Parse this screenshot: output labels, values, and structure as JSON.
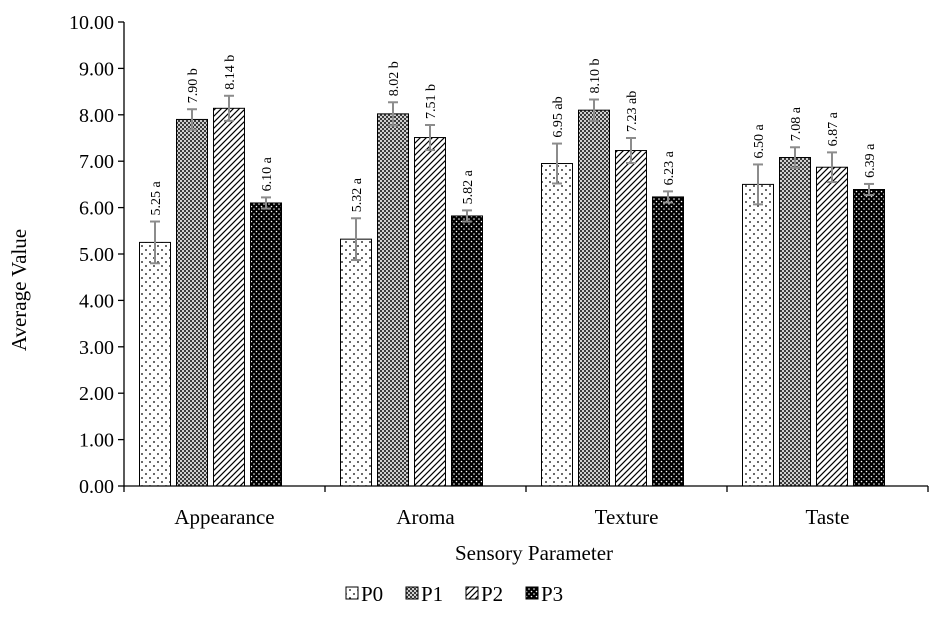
{
  "chart_data": {
    "type": "bar",
    "xlabel": "Sensory Parameter",
    "ylabel": "Average Value",
    "ylim": [
      0,
      10
    ],
    "y_ticks": [
      "0.00",
      "1.00",
      "2.00",
      "3.00",
      "4.00",
      "5.00",
      "6.00",
      "7.00",
      "8.00",
      "9.00",
      "10.00"
    ],
    "categories": [
      "Appearance",
      "Aroma",
      "Texture",
      "Taste"
    ],
    "legend_position": "bottom",
    "series": [
      {
        "name": "P0",
        "pattern": "sparse-dots",
        "values": [
          5.25,
          5.32,
          6.95,
          6.5
        ],
        "errors": [
          0.45,
          0.45,
          0.43,
          0.43
        ],
        "labels": [
          "5.25 a",
          "5.32 a",
          "6.95 ab",
          "6.50 a"
        ]
      },
      {
        "name": "P1",
        "pattern": "dense-crosshatch",
        "values": [
          7.9,
          8.02,
          8.1,
          7.08
        ],
        "errors": [
          0.22,
          0.25,
          0.23,
          0.22
        ],
        "labels": [
          "7.90 b",
          "8.02 b",
          "8.10 b",
          "7.08 a"
        ]
      },
      {
        "name": "P2",
        "pattern": "diagonal-stripes",
        "values": [
          8.14,
          7.51,
          7.23,
          6.87
        ],
        "errors": [
          0.27,
          0.27,
          0.27,
          0.32
        ],
        "labels": [
          "8.14 b",
          "7.51 b",
          "7.23 ab",
          "6.87 a"
        ]
      },
      {
        "name": "P3",
        "pattern": "dark-dots",
        "values": [
          6.1,
          5.82,
          6.23,
          6.39
        ],
        "errors": [
          0.12,
          0.12,
          0.12,
          0.12
        ],
        "labels": [
          "6.10 a",
          "5.82 a",
          "6.23 a",
          "6.39 a"
        ]
      }
    ],
    "colors": {
      "axis": "#000000",
      "error_bar": "#8c8c8c",
      "bar_border": "#000000"
    }
  }
}
